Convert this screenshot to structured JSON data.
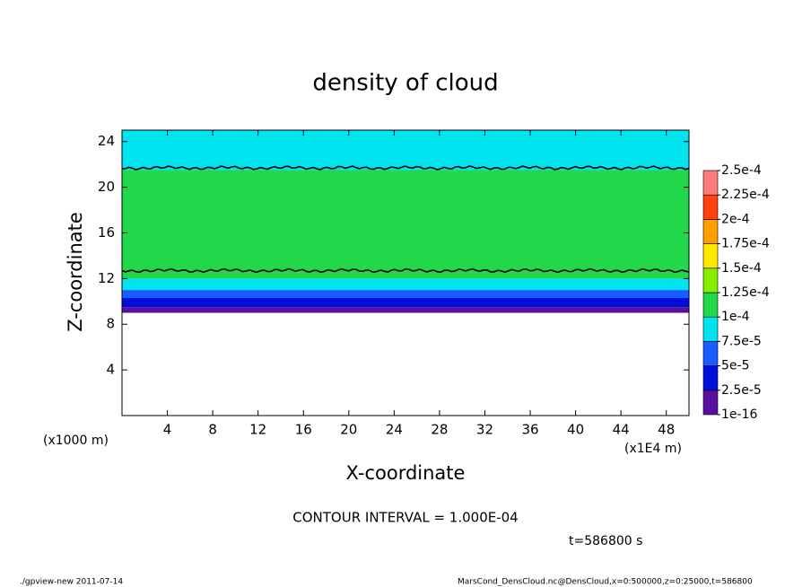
{
  "chart_data": {
    "type": "contour",
    "title": "density of cloud",
    "xlabel": "X-coordinate",
    "ylabel": "Z-coordinate",
    "x_unit": "(x1E4 m)",
    "y_unit": "(x1000 m)",
    "xlim": [
      0,
      50
    ],
    "xticks": [
      4,
      8,
      12,
      16,
      20,
      24,
      28,
      32,
      36,
      40,
      44,
      48
    ],
    "ylim": [
      0,
      25
    ],
    "yticks": [
      4,
      8,
      12,
      16,
      20,
      24
    ],
    "levels": [
      {
        "value": 1e-16,
        "label": "1e-16"
      },
      {
        "value": 2.5e-05,
        "label": "2.5e-5"
      },
      {
        "value": 5e-05,
        "label": "5e-5"
      },
      {
        "value": 7.5e-05,
        "label": "7.5e-5"
      },
      {
        "value": 0.0001,
        "label": "1e-4"
      },
      {
        "value": 0.000125,
        "label": "1.25e-4"
      },
      {
        "value": 0.00015,
        "label": "1.5e-4"
      },
      {
        "value": 0.000175,
        "label": "1.75e-4"
      },
      {
        "value": 0.0002,
        "label": "2e-4"
      },
      {
        "value": 0.000225,
        "label": "2.25e-4"
      },
      {
        "value": 0.00025,
        "label": "2.5e-4"
      }
    ],
    "colors": [
      "#5b0f9e",
      "#0010d8",
      "#1a5cff",
      "#00e4f0",
      "#22d84a",
      "#88ee00",
      "#ffe800",
      "#ffa000",
      "#ff4010",
      "#ff7a7a"
    ],
    "z_bins": [
      9.0,
      9.5,
      10.3,
      11.0,
      12.0,
      21.5,
      25
    ],
    "values": [
      1e-05,
      3.5e-05,
      6e-05,
      8.5e-05,
      0.00011,
      9e-05
    ],
    "contour_z": [
      12.7,
      21.7
    ],
    "contour_interval": "CONTOUR INTERVAL = 1.000E-04",
    "time": "t=586800 s",
    "footer_left": "./gpview-new  2011-07-14",
    "footer_right": "MarsCond_DensCloud.nc@DensCloud,x=0:500000,z=0:25000,t=586800"
  }
}
